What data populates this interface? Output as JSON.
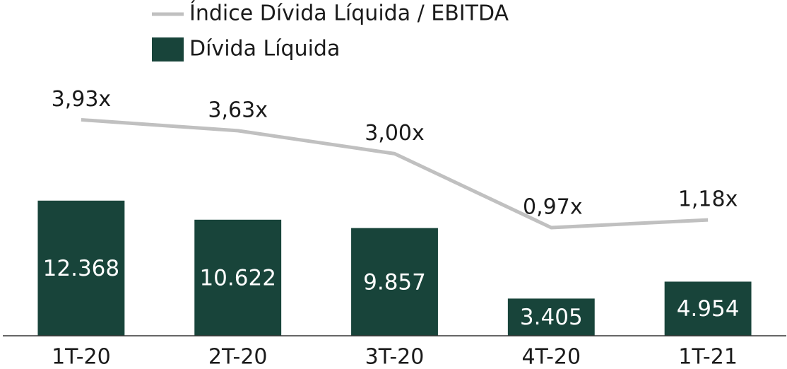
{
  "chart_data": {
    "type": "bar",
    "categories": [
      "1T-20",
      "2T-20",
      "3T-20",
      "4T-20",
      "1T-21"
    ],
    "series": [
      {
        "name": "Dívida Líquida",
        "type": "bar",
        "color": "#18443a",
        "values": [
          12368,
          10622,
          9857,
          3405,
          4954
        ],
        "value_labels": [
          "12.368",
          "10.622",
          "9.857",
          "3.405",
          "4.954"
        ]
      },
      {
        "name": "Índice Dívida Líquida / EBITDA",
        "type": "line",
        "axis": "y2",
        "color": "#c0c0c0",
        "values": [
          3.93,
          3.63,
          3.0,
          0.97,
          1.18
        ],
        "value_labels": [
          "3,93x",
          "3,63x",
          "3,00x",
          "0,97x",
          "1,18x"
        ]
      }
    ],
    "ylim": [
      0,
      24000
    ],
    "y2lim": [
      -2,
      5.2
    ]
  }
}
